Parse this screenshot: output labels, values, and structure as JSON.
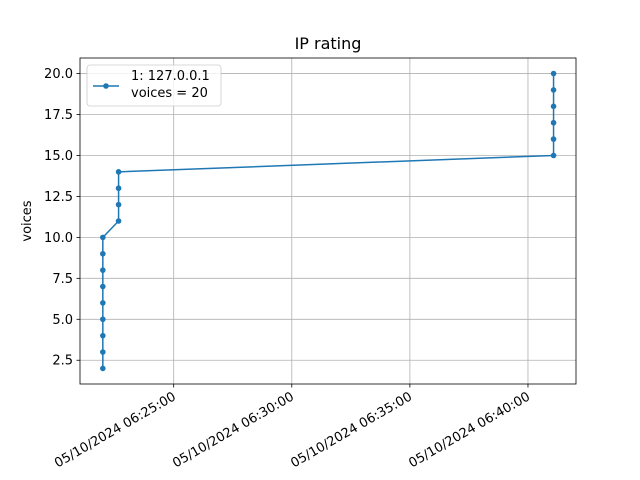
{
  "chart_data": {
    "type": "line",
    "title": "IP rating",
    "xlabel": "",
    "ylabel": "voices",
    "x_tick_labels": [
      "05/10/2024 06:25:00",
      "05/10/2024 06:30:00",
      "05/10/2024 06:35:00",
      "05/10/2024 06:40:00"
    ],
    "x_ticks": [
      "2024-05-10T06:25:00",
      "2024-05-10T06:30:00",
      "2024-05-10T06:35:00",
      "2024-05-10T06:40:00"
    ],
    "y_ticks": [
      2.5,
      5.0,
      7.5,
      10.0,
      12.5,
      15.0,
      17.5,
      20.0
    ],
    "y_tick_labels": [
      "2.5",
      "5.0",
      "7.5",
      "10.0",
      "12.5",
      "15.0",
      "17.5",
      "20.0"
    ],
    "xlim": [
      "2024-05-10T06:21:02",
      "2024-05-10T06:42:02"
    ],
    "ylim": [
      1.05,
      20.95
    ],
    "grid": true,
    "legend": {
      "placement": "top-left",
      "lines": [
        "1: 127.0.0.1",
        "voices = 20"
      ]
    },
    "series": [
      {
        "name": "1: 127.0.0.1",
        "color": "#1f77b4",
        "marker": "circle",
        "points": [
          {
            "x": "2024-05-10T06:22:00",
            "y": 2
          },
          {
            "x": "2024-05-10T06:22:00",
            "y": 3
          },
          {
            "x": "2024-05-10T06:22:00",
            "y": 4
          },
          {
            "x": "2024-05-10T06:22:00",
            "y": 5
          },
          {
            "x": "2024-05-10T06:22:00",
            "y": 6
          },
          {
            "x": "2024-05-10T06:22:00",
            "y": 7
          },
          {
            "x": "2024-05-10T06:22:00",
            "y": 8
          },
          {
            "x": "2024-05-10T06:22:00",
            "y": 9
          },
          {
            "x": "2024-05-10T06:22:00",
            "y": 10
          },
          {
            "x": "2024-05-10T06:22:40",
            "y": 11
          },
          {
            "x": "2024-05-10T06:22:40",
            "y": 12
          },
          {
            "x": "2024-05-10T06:22:40",
            "y": 13
          },
          {
            "x": "2024-05-10T06:22:40",
            "y": 14
          },
          {
            "x": "2024-05-10T06:41:05",
            "y": 15
          },
          {
            "x": "2024-05-10T06:41:05",
            "y": 16
          },
          {
            "x": "2024-05-10T06:41:05",
            "y": 17
          },
          {
            "x": "2024-05-10T06:41:05",
            "y": 18
          },
          {
            "x": "2024-05-10T06:41:05",
            "y": 19
          },
          {
            "x": "2024-05-10T06:41:05",
            "y": 20
          }
        ]
      }
    ]
  }
}
